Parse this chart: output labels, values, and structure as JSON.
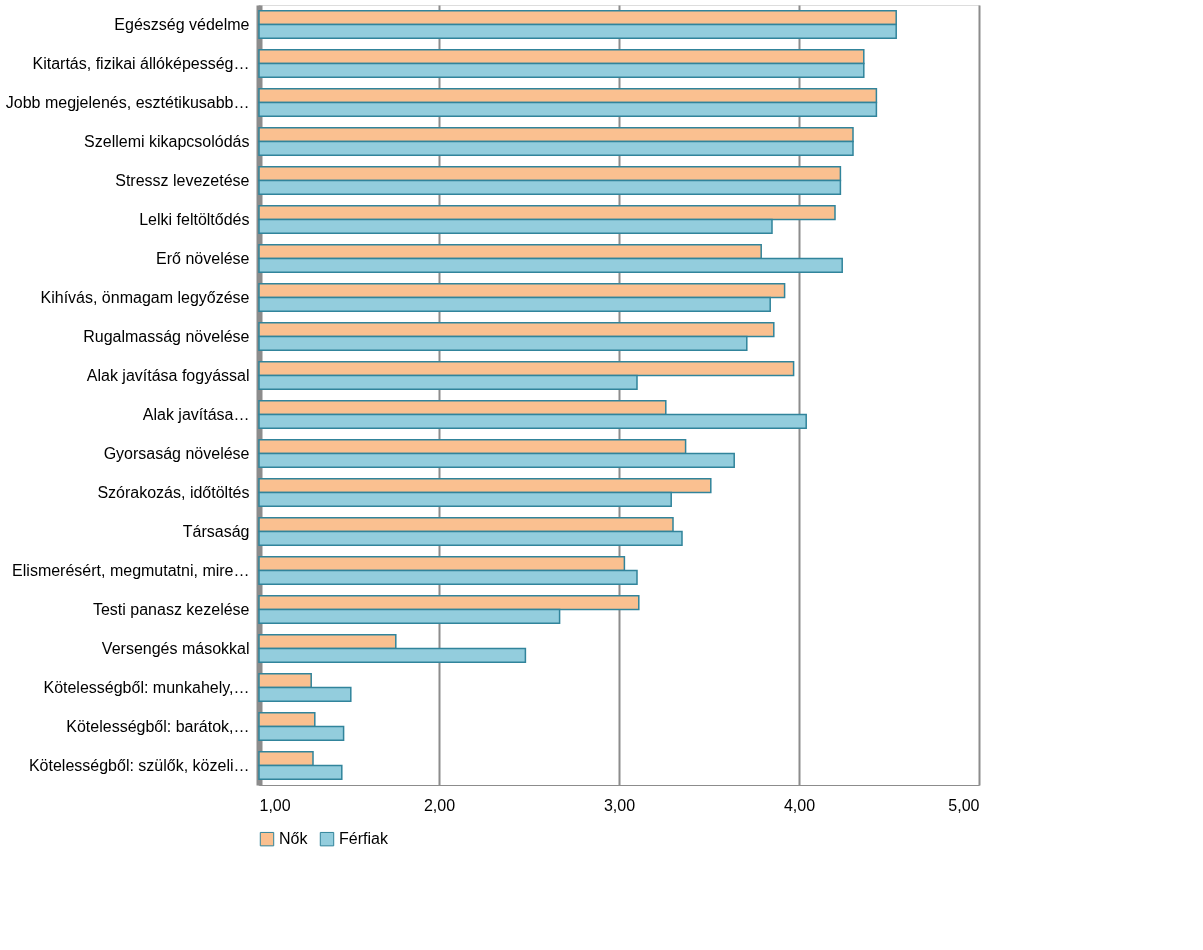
{
  "chart_data": {
    "type": "bar",
    "orientation": "horizontal",
    "categories": [
      "Egészség védelme",
      "Kitartás, fizikai állóképesség…",
      "Jobb megjelenés, esztétikusabb…",
      "Szellemi kikapcsolódás",
      "Stressz levezetése",
      "Lelki feltöltődés",
      "Erő növelése",
      "Kihívás, önmagam legyőzése",
      "Rugalmasság növelése",
      "Alak javítása fogyással",
      "Alak javítása…",
      "Gyorsaság növelése",
      "Szórakozás, időtöltés",
      "Társaság",
      "Elismerésért, megmutatni, mire…",
      "Testi panasz kezelése",
      "Versengés másokkal",
      "Kötelességből: munkahely,…",
      "Kötelességből: barátok,…",
      "Kötelességből: szülők, közeli…"
    ],
    "series": [
      {
        "name": "Nők",
        "color": "#fac090",
        "values": [
          4.54,
          4.36,
          4.43,
          4.3,
          4.23,
          4.2,
          3.79,
          3.92,
          3.86,
          3.97,
          3.26,
          3.37,
          3.51,
          3.3,
          3.03,
          3.11,
          1.76,
          1.29,
          1.31,
          1.3
        ]
      },
      {
        "name": "Férfiak",
        "color": "#93cddd",
        "values": [
          4.54,
          4.36,
          4.43,
          4.3,
          4.23,
          3.85,
          4.24,
          3.84,
          3.71,
          3.1,
          4.04,
          3.64,
          3.29,
          3.35,
          3.1,
          2.67,
          2.48,
          1.51,
          1.47,
          1.46
        ]
      }
    ],
    "xlim": [
      1,
      5
    ],
    "xticks": [
      {
        "value": 1,
        "label": "1,00"
      },
      {
        "value": 2,
        "label": "2,00"
      },
      {
        "value": 3,
        "label": "3,00"
      },
      {
        "value": 4,
        "label": "4,00"
      },
      {
        "value": 5,
        "label": "5,00"
      }
    ],
    "grid": "x",
    "legend": "bottom"
  }
}
